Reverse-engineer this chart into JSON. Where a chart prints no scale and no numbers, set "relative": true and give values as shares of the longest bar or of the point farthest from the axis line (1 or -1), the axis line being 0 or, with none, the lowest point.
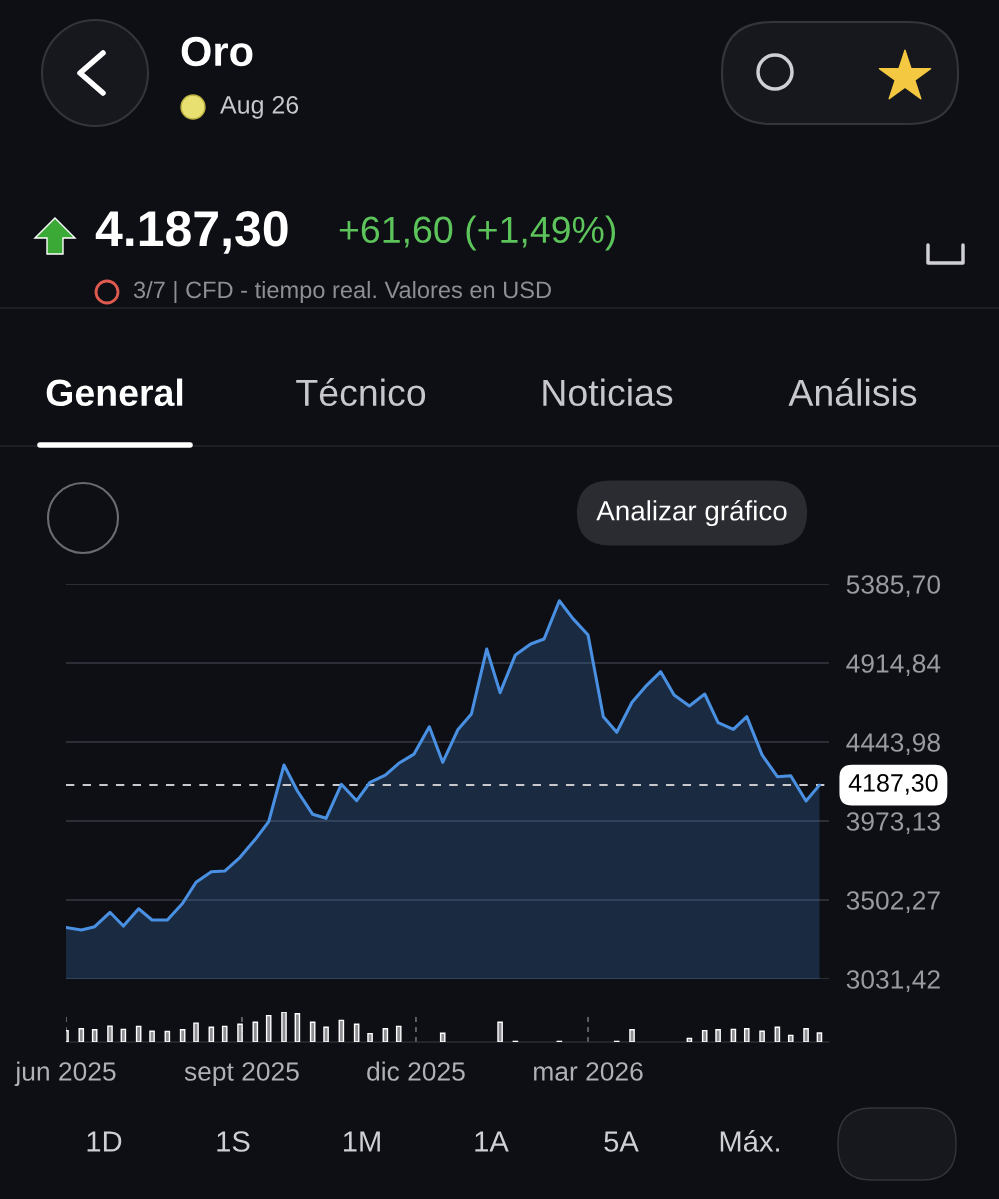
{
  "chart_data": [
    {
      "type": "other",
      "title": "Oro",
      "subtitle": "Aug 26",
      "annotations": [
        "4.187,30",
        "+61,60 (+1,49%)",
        "3/7 | CFD - tiempo real. Valores en USD",
        "General",
        "Técnico",
        "Noticias",
        "Análisis",
        "Analizar gráfico"
      ]
    },
    {
      "type": "area",
      "x": [
        "2025-06-01",
        "2025-06-09",
        "2025-06-16",
        "2025-06-24",
        "2025-07-01",
        "2025-07-09",
        "2025-07-16",
        "2025-07-24",
        "2025-08-01",
        "2025-08-08",
        "2025-08-16",
        "2025-08-23",
        "2025-08-31",
        "2025-09-08",
        "2025-09-15",
        "2025-09-23",
        "2025-09-30",
        "2025-10-08",
        "2025-10-15",
        "2025-10-23",
        "2025-10-31",
        "2025-11-07",
        "2025-11-15",
        "2025-11-22",
        "2025-11-30",
        "2025-12-08",
        "2025-12-15",
        "2025-12-23",
        "2025-12-30",
        "2026-01-07",
        "2026-01-14",
        "2026-01-22",
        "2026-01-30",
        "2026-02-06",
        "2026-02-14",
        "2026-02-21",
        "2026-03-01",
        "2026-03-09",
        "2026-03-16",
        "2026-03-24",
        "2026-03-31",
        "2026-04-08",
        "2026-04-15",
        "2026-04-23",
        "2026-05-01",
        "2026-05-08",
        "2026-05-16",
        "2026-05-23",
        "2026-05-31",
        "2026-06-08",
        "2026-06-15",
        "2026-06-23",
        "2026-06-30"
      ],
      "series": [
        {
          "color": "#4a90e2",
          "values": [
            3339,
            3323,
            3343,
            3429,
            3347,
            3450,
            3383,
            3383,
            3483,
            3608,
            3671,
            3675,
            3757,
            3864,
            3969,
            4307,
            4152,
            4013,
            3989,
            4192,
            4094,
            4204,
            4247,
            4317,
            4372,
            4535,
            4323,
            4519,
            4611,
            4998,
            4738,
            4963,
            5028,
            5058,
            5286,
            5181,
            5082,
            4595,
            4502,
            4681,
            4774,
            4863,
            4724,
            4659,
            4730,
            4559,
            4519,
            4595,
            4367,
            4237,
            4243,
            4092,
            4187
          ]
        }
      ],
      "xlim": [
        "2025-06-01",
        "2026-07-05"
      ],
      "ylim": [
        3031.42,
        5385.7
      ],
      "yticks": [
        {
          "value": 5385.7,
          "label": "5385,70"
        },
        {
          "value": 4914.84,
          "label": "4914,84"
        },
        {
          "value": 4443.98,
          "label": "4443,98"
        },
        {
          "value": 3973.13,
          "label": "3973,13"
        },
        {
          "value": 3502.27,
          "label": "3502,27"
        },
        {
          "value": 3031.42,
          "label": "3031,42"
        }
      ],
      "tick_labels": "y",
      "grid": "y",
      "ref_lines": [
        {
          "axis": "y",
          "value": 4187.3,
          "label": "4187,30",
          "color": "#c8c8cc",
          "line_style": "dashed"
        }
      ]
    },
    {
      "type": "bar",
      "relative": true,
      "x": [
        "2025-06-01",
        "2025-06-09",
        "2025-06-16",
        "2025-06-24",
        "2025-07-01",
        "2025-07-09",
        "2025-07-16",
        "2025-07-24",
        "2025-08-01",
        "2025-08-08",
        "2025-08-16",
        "2025-08-23",
        "2025-08-31",
        "2025-09-08",
        "2025-09-15",
        "2025-09-23",
        "2025-09-30",
        "2025-10-08",
        "2025-10-15",
        "2025-10-23",
        "2025-10-31",
        "2025-11-07",
        "2025-11-15",
        "2025-11-22",
        "2025-11-30",
        "2025-12-08",
        "2025-12-15",
        "2025-12-23",
        "2025-12-30",
        "2026-01-07",
        "2026-01-14",
        "2026-01-22",
        "2026-01-30",
        "2026-02-06",
        "2026-02-14",
        "2026-02-21",
        "2026-03-01",
        "2026-03-09",
        "2026-03-16",
        "2026-03-24",
        "2026-03-31",
        "2026-04-08",
        "2026-04-15",
        "2026-04-23",
        "2026-05-01",
        "2026-05-08",
        "2026-05-16",
        "2026-05-23",
        "2026-05-31",
        "2026-06-08",
        "2026-06-15",
        "2026-06-23",
        "2026-06-30"
      ],
      "series": [
        {
          "color": "#8e8e93",
          "values": [
            0.38,
            0.44,
            0.41,
            0.53,
            0.42,
            0.52,
            0.36,
            0.35,
            0.41,
            0.63,
            0.49,
            0.52,
            0.59,
            0.66,
            0.88,
            1,
            0.94,
            0.66,
            0.49,
            0.72,
            0.59,
            0.28,
            0.44,
            0.52,
            null,
            null,
            0.29,
            null,
            null,
            null,
            0.66,
            0.02,
            null,
            null,
            0.02,
            null,
            null,
            null,
            0.02,
            0.41,
            null,
            null,
            null,
            0.12,
            0.38,
            0.41,
            0.42,
            0.44,
            0.36,
            0.49,
            0.22,
            0.44,
            0.3
          ]
        }
      ],
      "xlim": [
        "2025-06-01",
        "2026-07-05"
      ],
      "xticks": [
        {
          "value": "2025-06-01",
          "label": "jun 2025"
        },
        {
          "value": "2025-09-01",
          "label": "sept 2025"
        },
        {
          "value": "2025-12-01",
          "label": "dic 2025"
        },
        {
          "value": "2026-03-01",
          "label": "mar 2026"
        }
      ],
      "tick_labels": "x",
      "grid": "x"
    },
    {
      "type": "other",
      "annotations": [
        "1D",
        "1S",
        "1M",
        "1A",
        "5A",
        "Máx."
      ]
    }
  ]
}
